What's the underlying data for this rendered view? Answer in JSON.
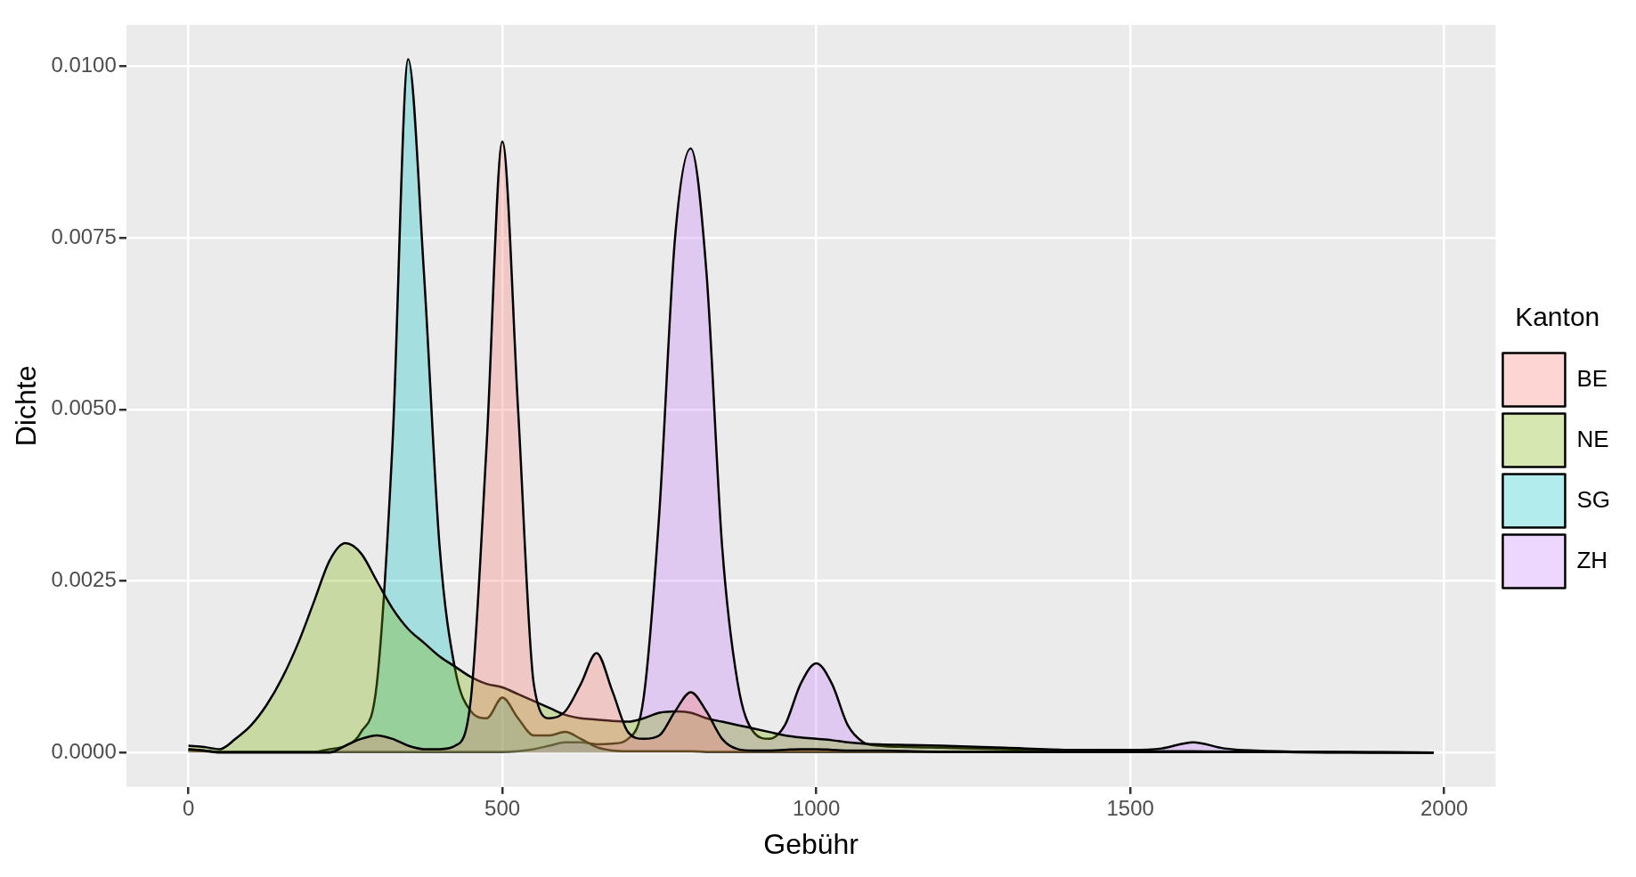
{
  "chart_data": {
    "type": "area",
    "xlabel": "Gebühr",
    "ylabel": "Dichte",
    "legend_title": "Kanton",
    "legend": "right",
    "grid": true,
    "x": [
      0,
      25,
      50,
      75,
      100,
      125,
      150,
      175,
      200,
      225,
      250,
      275,
      300,
      325,
      350,
      375,
      400,
      425,
      450,
      475,
      500,
      525,
      550,
      575,
      600,
      625,
      650,
      675,
      700,
      725,
      750,
      775,
      800,
      825,
      850,
      875,
      900,
      925,
      950,
      975,
      1000,
      1025,
      1050,
      1075,
      1100,
      1150,
      1200,
      1300,
      1400,
      1500,
      1550,
      1600,
      1650,
      1700,
      1800,
      1900,
      1983
    ],
    "xlim": [
      -99,
      2082
    ],
    "xticks": [
      0,
      500,
      1000,
      1500,
      2000
    ],
    "ylim": [
      -0.0005,
      0.0106
    ],
    "yticks": [
      {
        "value": 0,
        "label": "0.0000"
      },
      {
        "value": 0.0025,
        "label": "0.0025"
      },
      {
        "value": 0.005,
        "label": "0.0050"
      },
      {
        "value": 0.0075,
        "label": "0.0075"
      },
      {
        "value": 0.01,
        "label": "0.0100"
      }
    ],
    "series": [
      {
        "name": "BE",
        "color": "#f8766d",
        "values": [
          5e-05,
          3e-05,
          0,
          0,
          0,
          0,
          0,
          0,
          0,
          0,
          0.0001,
          0.0002,
          0.00025,
          0.0002,
          0.0001,
          5e-05,
          5e-05,
          0.0001,
          0.0008,
          0.0045,
          0.0089,
          0.005,
          0.001,
          0.0005,
          0.0006,
          0.001,
          0.00145,
          0.0009,
          0.0003,
          0.0002,
          0.00025,
          0.0006,
          0.00088,
          0.0006,
          0.0002,
          5e-05,
          3e-05,
          3e-05,
          4e-05,
          5e-05,
          5e-05,
          4e-05,
          3e-05,
          3e-05,
          3e-05,
          2e-05,
          1e-05,
          1e-05,
          1e-05,
          1e-05,
          1e-05,
          1e-05,
          1e-05,
          1e-05,
          1e-05,
          0,
          0
        ]
      },
      {
        "name": "NE",
        "color": "#7cae00",
        "values": [
          0.0001,
          8e-05,
          5e-05,
          0.0002,
          0.0004,
          0.0007,
          0.0011,
          0.0016,
          0.0022,
          0.0028,
          0.00305,
          0.0029,
          0.0025,
          0.0021,
          0.0018,
          0.0016,
          0.0014,
          0.00125,
          0.0011,
          0.001,
          0.00095,
          0.00085,
          0.00075,
          0.00065,
          0.00055,
          0.0005,
          0.00048,
          0.00046,
          0.00045,
          0.0005,
          0.00058,
          0.0006,
          0.00058,
          0.0005,
          0.00045,
          0.0004,
          0.00035,
          0.0003,
          0.00025,
          0.00022,
          0.0002,
          0.00018,
          0.00015,
          0.00013,
          0.00012,
          0.00011,
          0.0001,
          7e-05,
          4e-05,
          3e-05,
          2e-05,
          2e-05,
          1.5e-05,
          1e-05,
          5e-06,
          2e-06,
          0
        ]
      },
      {
        "name": "SG",
        "color": "#00bfc4",
        "values": [
          3e-05,
          2e-05,
          1e-05,
          1e-05,
          1e-05,
          1e-05,
          1e-05,
          1e-05,
          1e-05,
          5e-05,
          0.0001,
          0.0003,
          0.001,
          0.0045,
          0.0101,
          0.007,
          0.003,
          0.0012,
          0.0006,
          0.0005,
          0.0008,
          0.0005,
          0.00025,
          0.00025,
          0.0003,
          0.0002,
          8e-05,
          3e-05,
          2e-05,
          2e-05,
          2e-05,
          2e-05,
          2e-05,
          1e-05,
          1e-05,
          1e-05,
          1e-05,
          1e-05,
          1e-05,
          1e-05,
          1e-05,
          1e-05,
          1e-05,
          1e-05,
          1e-05,
          1e-05,
          1e-05,
          1e-05,
          1e-05,
          1e-05,
          1e-05,
          1e-05,
          1e-05,
          1e-05,
          0,
          0,
          0
        ]
      },
      {
        "name": "ZH",
        "color": "#c77cff",
        "values": [
          5e-05,
          3e-05,
          1e-05,
          1e-05,
          1e-05,
          1e-05,
          1e-05,
          1e-05,
          1e-05,
          1e-05,
          1e-05,
          1e-05,
          1e-05,
          1e-05,
          1e-05,
          1e-05,
          1e-05,
          1e-05,
          1e-05,
          1e-05,
          1e-05,
          2e-05,
          5e-05,
          0.0001,
          0.00015,
          0.00015,
          0.00012,
          0.00013,
          0.0002,
          0.0008,
          0.0035,
          0.0075,
          0.0088,
          0.007,
          0.003,
          0.001,
          0.0003,
          0.0002,
          0.0004,
          0.001,
          0.0013,
          0.001,
          0.0004,
          0.00015,
          0.0001,
          8e-05,
          7e-05,
          5e-05,
          4e-05,
          4e-05,
          6e-05,
          0.00015,
          6e-05,
          3e-05,
          1e-05,
          5e-06,
          0
        ]
      }
    ]
  }
}
